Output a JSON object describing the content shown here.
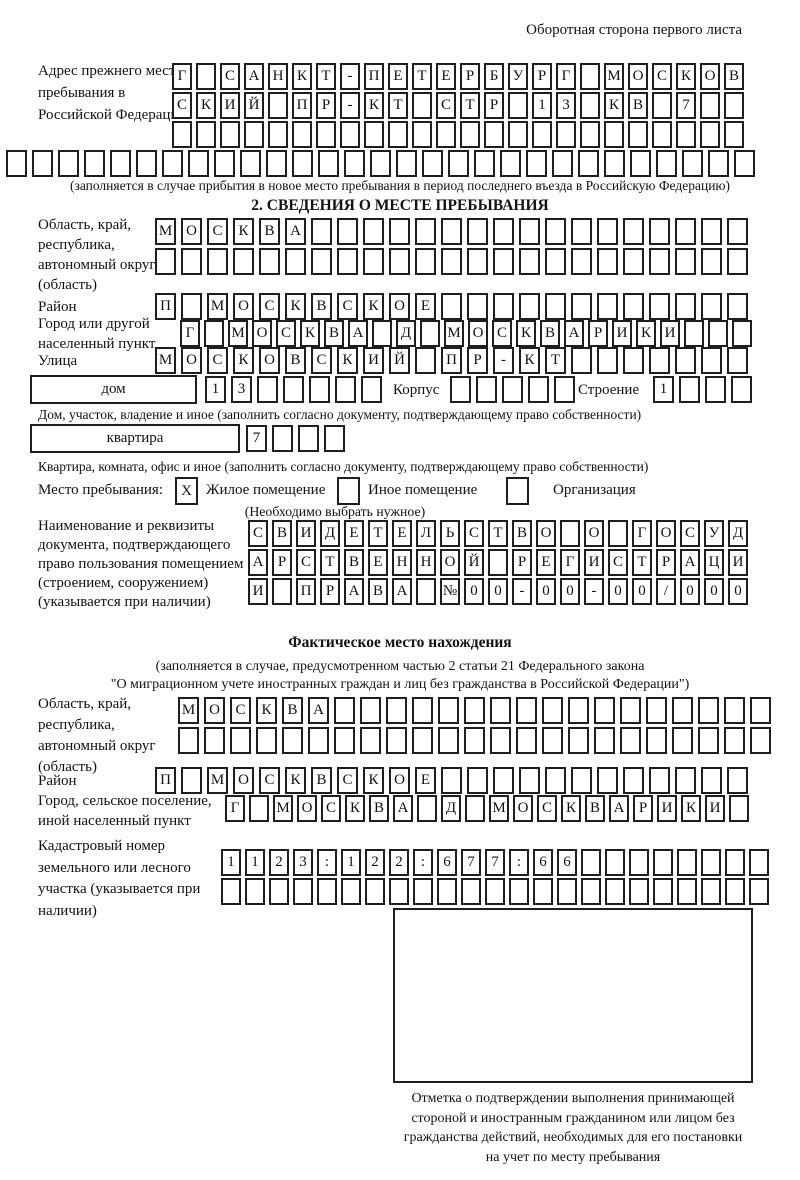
{
  "page": {
    "header_note": "Оборотная сторона первого листа"
  },
  "prev_address": {
    "label": "Адрес прежнего места пребывания в Российской Федерации",
    "rows": [
      {
        "text": "Г САНКТ-ПЕТЕРБУРГ МОСКОВ",
        "len": 24
      },
      {
        "text": "СКИЙ ПР-КТ СТР 13 КВ 7",
        "len": 24
      },
      {
        "text": "",
        "len": 24
      },
      {
        "text": "",
        "len": 29
      }
    ],
    "caption": "(заполняется в случае прибытия в новое место пребывания в период последнего въезда в Российскую Федерацию)"
  },
  "section2": {
    "title": "2. СВЕДЕНИЯ О МЕСТЕ ПРЕБЫВАНИЯ",
    "region_label": "Область, край, республика, автономный округ (область)",
    "region_rows": [
      {
        "text": "МОСКВА",
        "len": 23
      },
      {
        "text": "",
        "len": 23
      }
    ],
    "district_label": "Район",
    "district_row": {
      "text": "П МОСКВСКОЕ",
      "len": 23
    },
    "city_label": "Город или другой населенный пункт",
    "city_row": {
      "text": "Г МОСКВА Д МОСКВАРИКИ",
      "len": 24
    },
    "street_label": "Улица",
    "street_row": {
      "text": "МОСКОВСКИЙ ПР-КТ",
      "len": 23
    },
    "house_box_label": "дом",
    "house_row": {
      "text": "13",
      "len": 7
    },
    "korpus_label": "Корпус",
    "korpus_row": {
      "text": "",
      "len": 5
    },
    "stroenie_label": "Строение",
    "stroenie_row": {
      "text": "1",
      "len": 4
    },
    "house_caption": "Дом, участок, владение и иное (заполнить согласно документу, подтверждающему право собственности)",
    "apartment_box_label": "квартира",
    "apartment_row": {
      "text": "7",
      "len": 4
    },
    "apartment_caption": "Квартира, комната, офис и иное (заполнить согласно документу, подтверждающему право собственности)",
    "stay_label": "Место пребывания:",
    "stay_options": [
      {
        "mark": "X",
        "label": "Жилое помещение"
      },
      {
        "mark": "",
        "label": "Иное помещение"
      },
      {
        "mark": "",
        "label": "Организация"
      }
    ],
    "stay_note": "(Необходимо выбрать нужное)",
    "doc_label": "Наименование и реквизиты документа, подтверждающего право пользования помещением (строением, сооружением) (указывается при наличии)",
    "doc_rows": [
      {
        "text": "СВИДЕТЕЛЬСТВО О ГОСУД",
        "len": 21
      },
      {
        "text": "АРСТВЕННОЙ РЕГИСТРАЦИ",
        "len": 21
      },
      {
        "text": "И ПРАВА №00-00-00/000",
        "len": 21
      }
    ]
  },
  "actual_location": {
    "title": "Фактическое место нахождения",
    "subtitle_lines": [
      "(заполняется в случае, предусмотренном частью 2 статьи 21 Федерального закона",
      "\"О миграционном учете иностранных граждан и лиц без гражданства в Российской Федерации\")"
    ],
    "region_label": "Область, край, республика, автономный округ (область)",
    "region_rows": [
      {
        "text": "МОСКВА",
        "len": 23
      },
      {
        "text": "",
        "len": 23
      }
    ],
    "district_label": "Район",
    "district_row": {
      "text": "П МОСКВСКОЕ",
      "len": 23
    },
    "city_label": "Город, сельское поселение, иной населенный пункт",
    "city_row": {
      "text": "Г МОСКВА Д МОСКВАРИКИ",
      "len": 22
    },
    "cadastral_label": "Кадастровый номер земельного или лесного участка (указывается при наличии)",
    "cadastral_rows": [
      {
        "text": "1123:122:677:66",
        "len": 23
      },
      {
        "text": "",
        "len": 23
      }
    ],
    "stamp_caption_lines": [
      "Отметка о подтверждении выполнения принимающей",
      "стороной и иностранным гражданином или лицом без",
      "гражданства действий, необходимых для его постановки",
      "на учет по месту пребывания"
    ]
  }
}
